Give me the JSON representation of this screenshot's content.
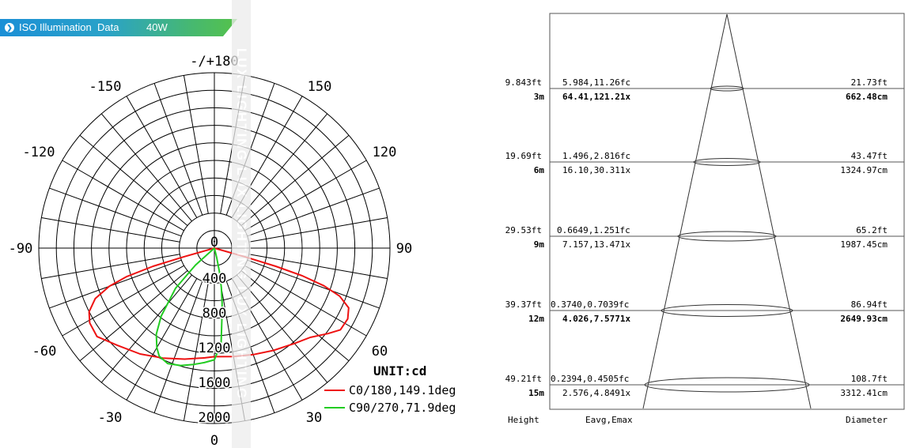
{
  "header": {
    "title": "ISO Illumination  Data",
    "power": "40W"
  },
  "watermark": "LUX LIGHTING  LUX LIGHTING  LUX LIGHTING",
  "chart_data": [
    {
      "type": "polar",
      "angle_labels": [
        "-/+180",
        "-150",
        "150",
        "-120",
        "120",
        "-90",
        "90",
        "-60",
        "60",
        "-30",
        "30",
        "0"
      ],
      "radial_labels": [
        "0",
        "400",
        "800",
        "1200",
        "1600",
        "2000"
      ],
      "rmax": 2000,
      "unit": "UNIT:cd",
      "series": [
        {
          "name": "C0/180,149.1deg",
          "color": "#ee1111",
          "points": [
            [
              -74.5,
              0
            ],
            [
              -74,
              400
            ],
            [
              -73.5,
              800
            ],
            [
              -72,
              1150
            ],
            [
              -70,
              1400
            ],
            [
              -67,
              1620
            ],
            [
              -63,
              1760
            ],
            [
              -59,
              1820
            ],
            [
              -53,
              1840
            ],
            [
              -45,
              1720
            ],
            [
              -35,
              1620
            ],
            [
              -25,
              1520
            ],
            [
              -15,
              1440
            ],
            [
              -5,
              1380
            ],
            [
              0,
              1360
            ],
            [
              10,
              1380
            ],
            [
              20,
              1420
            ],
            [
              30,
              1480
            ],
            [
              40,
              1560
            ],
            [
              47,
              1640
            ],
            [
              53,
              1780
            ],
            [
              57,
              1880
            ],
            [
              62,
              1890
            ],
            [
              66,
              1840
            ],
            [
              69,
              1680
            ],
            [
              71,
              1450
            ],
            [
              72.5,
              1150
            ],
            [
              73.5,
              800
            ],
            [
              74,
              400
            ],
            [
              74.5,
              0
            ]
          ]
        },
        {
          "name": "C90/270,71.9deg",
          "color": "#22cc22",
          "points": [
            [
              -50,
              0
            ],
            [
              -48,
              320
            ],
            [
              -44,
              700
            ],
            [
              -38,
              1080
            ],
            [
              -34,
              1300
            ],
            [
              -30,
              1440
            ],
            [
              -27,
              1520
            ],
            [
              -22,
              1560
            ],
            [
              -16,
              1530
            ],
            [
              -10,
              1480
            ],
            [
              -5,
              1440
            ],
            [
              0,
              1400
            ],
            [
              4,
              1200
            ],
            [
              6,
              900
            ],
            [
              8,
              700
            ],
            [
              10,
              500
            ],
            [
              12,
              300
            ],
            [
              14,
              120
            ],
            [
              15,
              0
            ]
          ]
        }
      ]
    },
    {
      "type": "table",
      "columns": [
        "Height",
        "Eavg,Emax",
        "Diameter"
      ],
      "rows": [
        {
          "height_ft": "9.843ft",
          "height_m": "3m",
          "eavg_fc": "5.984,11.26fc",
          "eavg_lx": "64.41,121.21x",
          "dia_ft": "21.73ft",
          "dia_cm": "662.48cm"
        },
        {
          "height_ft": "19.69ft",
          "height_m": "6m",
          "eavg_fc": "1.496,2.816fc",
          "eavg_lx": "16.10,30.311x",
          "dia_ft": "43.47ft",
          "dia_cm": "1324.97cm"
        },
        {
          "height_ft": "29.53ft",
          "height_m": "9m",
          "eavg_fc": "0.6649,1.251fc",
          "eavg_lx": "7.157,13.471x",
          "dia_ft": "65.2ft",
          "dia_cm": "1987.45cm"
        },
        {
          "height_ft": "39.37ft",
          "height_m": "12m",
          "eavg_fc": "0.3740,0.7039fc",
          "eavg_lx": "4.026,7.5771x",
          "dia_ft": "86.94ft",
          "dia_cm": "2649.93cm"
        },
        {
          "height_ft": "49.21ft",
          "height_m": "15m",
          "eavg_fc": "0.2394,0.4505fc",
          "eavg_lx": "2.576,4.8491x",
          "dia_ft": "108.7ft",
          "dia_cm": "3312.41cm"
        }
      ]
    }
  ]
}
